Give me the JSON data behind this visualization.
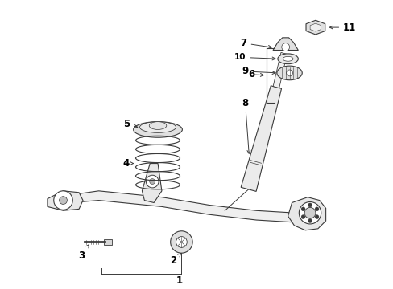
{
  "bg_color": "#ffffff",
  "line_color": "#3a3a3a",
  "label_color": "#000000",
  "fig_width": 4.89,
  "fig_height": 3.6,
  "dpi": 100,
  "label_fontsize": 8.5,
  "arrow_lw": 0.7,
  "part_lw": 0.8
}
